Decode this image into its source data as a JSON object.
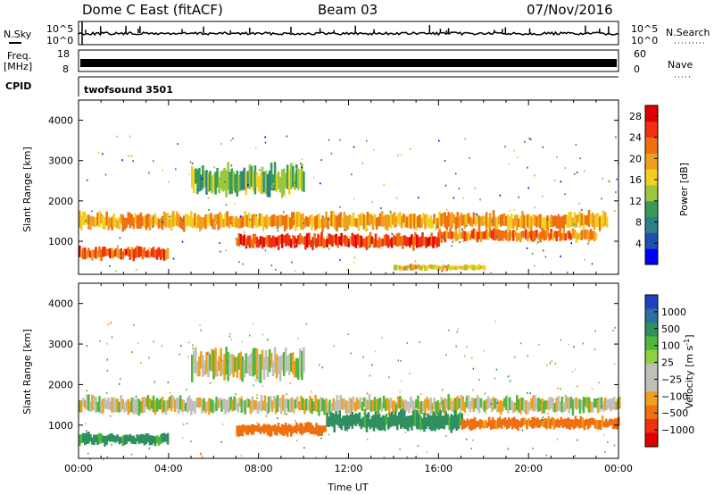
{
  "header": {
    "station": "Dome C East (fitACF)",
    "beam": "Beam 03",
    "date": "07/Nov/2016"
  },
  "left_labels": {
    "nsky": "N.Sky",
    "freq": "Freq.",
    "mhz": "[MHz]",
    "cpid": "CPID"
  },
  "right_labels": {
    "nsearch": "N.Search",
    "nave": "Nave"
  },
  "cpid_text": "twofsound 3501",
  "colors": {
    "power": [
      "#0000ff",
      "#1f4fb0",
      "#2d7f88",
      "#3a9a5a",
      "#9ac83a",
      "#f0d020",
      "#f0a020",
      "#f07010",
      "#f03010",
      "#e00000"
    ],
    "velocity_positive": [
      "#2040c0",
      "#2a6fa0",
      "#2f8f60",
      "#4fb83a",
      "#8fd040"
    ],
    "velocity_ground": "#c0c0b8",
    "velocity_negative": [
      "#f0a020",
      "#f07010",
      "#f03010",
      "#e00000"
    ]
  },
  "chart_data": [
    {
      "type": "line",
      "panel": "noise",
      "x": [
        "00:00",
        "04:00",
        "08:00",
        "12:00",
        "16:00",
        "20:00",
        "00:00"
      ],
      "left_ticks": [
        "10^5",
        "10^0"
      ],
      "right_ticks": [
        "10^5",
        "10^0"
      ]
    },
    {
      "type": "line",
      "panel": "frequency",
      "left_ticks": [
        "18",
        "8"
      ],
      "right_ticks": [
        "60",
        "0"
      ]
    },
    {
      "type": "heatmap",
      "panel": "power",
      "xlabel": "",
      "ylabel": "Slant Range [km]",
      "ylim": [
        180,
        4500
      ],
      "yticks": [
        "1000",
        "2000",
        "3000",
        "4000"
      ],
      "colorbar": {
        "label": "Power [dB]",
        "ticks": [
          "4",
          "8",
          "12",
          "16",
          "20",
          "24",
          "28"
        ],
        "range": [
          0,
          30
        ]
      },
      "bands": [
        {
          "start_hr": 0,
          "end_hr": 23.5,
          "center_km": 1500,
          "width_km": 350,
          "value_db": 20
        },
        {
          "start_hr": 0,
          "end_hr": 4,
          "center_km": 700,
          "width_km": 250,
          "value_db": 24
        },
        {
          "start_hr": 7,
          "end_hr": 16,
          "center_km": 1000,
          "width_km": 300,
          "value_db": 26
        },
        {
          "start_hr": 16,
          "end_hr": 23,
          "center_km": 1150,
          "width_km": 250,
          "value_db": 22
        },
        {
          "start_hr": 5,
          "end_hr": 10,
          "center_km": 2500,
          "width_km": 600,
          "value_db": 12
        },
        {
          "start_hr": 14,
          "end_hr": 18,
          "center_km": 350,
          "width_km": 120,
          "value_db": 18
        }
      ]
    },
    {
      "type": "heatmap",
      "panel": "velocity",
      "xlabel": "Time UT",
      "ylabel": "Slant Range [km]",
      "ylim": [
        180,
        4500
      ],
      "yticks": [
        "1000",
        "2000",
        "3000",
        "4000"
      ],
      "xticks": [
        "00:00",
        "04:00",
        "08:00",
        "12:00",
        "16:00",
        "20:00",
        "00:00"
      ],
      "colorbar": {
        "label": "Velocity [m s^-1]",
        "ticks": [
          "1000",
          "500",
          "100",
          "25",
          "−25",
          "−100",
          "−500",
          "−1000"
        ]
      },
      "bands": [
        {
          "start_hr": 0,
          "end_hr": 24,
          "center_km": 1500,
          "width_km": 350,
          "value_ms": 0
        },
        {
          "start_hr": 0,
          "end_hr": 4,
          "center_km": 650,
          "width_km": 250,
          "value_ms": 150
        },
        {
          "start_hr": 7,
          "end_hr": 11,
          "center_km": 900,
          "width_km": 250,
          "value_ms": -200
        },
        {
          "start_hr": 11,
          "end_hr": 17,
          "center_km": 1100,
          "width_km": 400,
          "value_ms": 150
        },
        {
          "start_hr": 17,
          "end_hr": 24,
          "center_km": 1050,
          "width_km": 250,
          "value_ms": -150
        },
        {
          "start_hr": 5,
          "end_hr": 10,
          "center_km": 2500,
          "width_km": 600,
          "value_ms": 0
        }
      ]
    }
  ]
}
